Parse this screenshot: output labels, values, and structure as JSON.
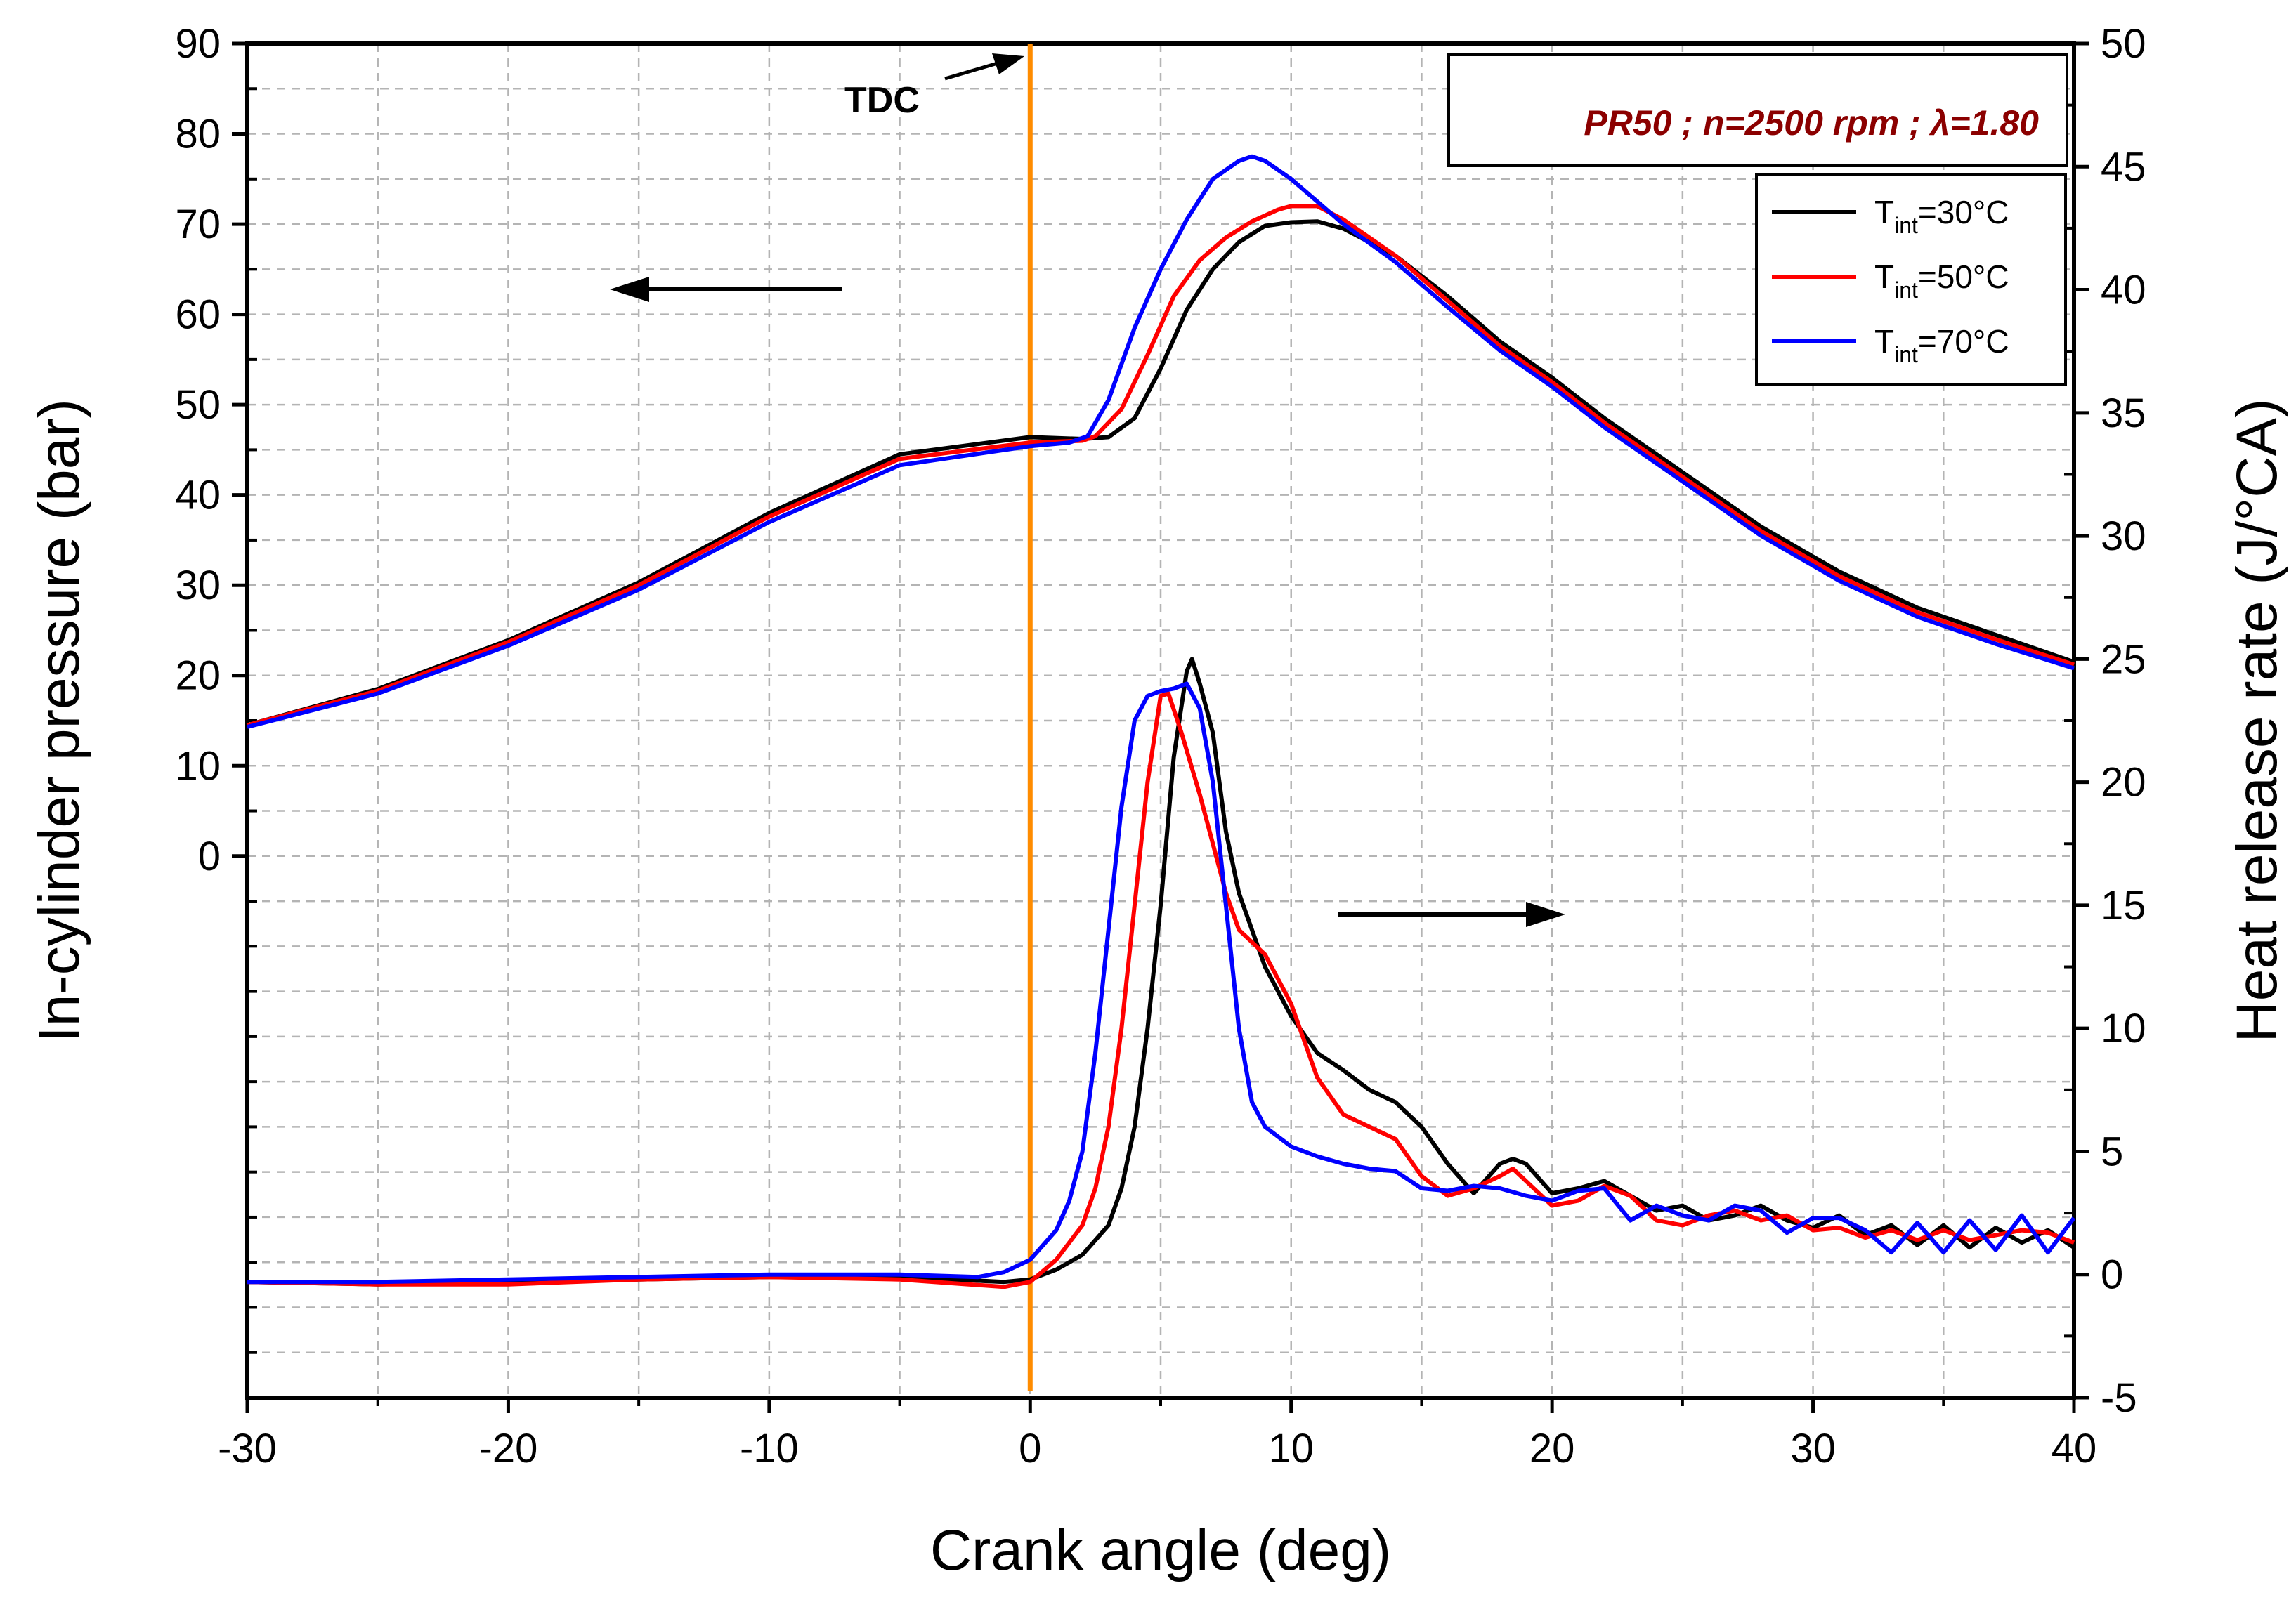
{
  "chart_data": {
    "type": "line",
    "title": "",
    "xlabel": "Crank angle (deg)",
    "ylabel_left": "In-cylinder pressure (bar)",
    "ylabel_right": "Heat release rate (J/°CA)",
    "xlim": [
      -30,
      40
    ],
    "ylim_left": [
      -60,
      90
    ],
    "ylim_right": [
      -5,
      50
    ],
    "x_ticks": [
      "-30",
      "-20",
      "-10",
      "0",
      "10",
      "20",
      "30",
      "40"
    ],
    "y_left_ticks": [
      "0",
      "10",
      "20",
      "30",
      "40",
      "50",
      "60",
      "70",
      "80",
      "90"
    ],
    "y_right_ticks": [
      "-5",
      "0",
      "5",
      "10",
      "15",
      "20",
      "25",
      "30",
      "35",
      "40",
      "45",
      "50"
    ],
    "grid": true,
    "condition_label": "PR50 ; n=2500 rpm ; λ=1.80",
    "tdc_label": "TDC",
    "tdc_x": 0,
    "colors": {
      "tdc_line": "#ff8c00",
      "condition_text": "#8b0000",
      "grid": "#b4b4b4"
    },
    "legend": {
      "position": "top-right",
      "entries": [
        {
          "prefix": "T",
          "sub": "int",
          "suffix": "=30°C"
        },
        {
          "prefix": "T",
          "sub": "int",
          "suffix": "=50°C"
        },
        {
          "prefix": "T",
          "sub": "int",
          "suffix": "=70°C"
        }
      ]
    },
    "series": [
      {
        "name": "Tint=30°C",
        "color": "#000000",
        "pressure": {
          "x": [
            -30,
            -25,
            -20,
            -15,
            -10,
            -5,
            0,
            2,
            3,
            4,
            5,
            6,
            7,
            8,
            9,
            10,
            11,
            12,
            14,
            16,
            18,
            20,
            22,
            25,
            28,
            31,
            34,
            37,
            40
          ],
          "y": [
            14.5,
            18.5,
            23.9,
            30.3,
            38.0,
            44.5,
            46.4,
            46.2,
            46.4,
            48.5,
            54.0,
            60.5,
            65.0,
            68.0,
            69.8,
            70.2,
            70.3,
            69.5,
            66.5,
            62.0,
            57.0,
            53.0,
            48.5,
            42.5,
            36.5,
            31.5,
            27.5,
            24.5,
            21.5
          ]
        },
        "hrr": {
          "x": [
            -30,
            -25,
            -20,
            -15,
            -10,
            -5,
            -1,
            0,
            1,
            2,
            3,
            3.5,
            4,
            4.5,
            5,
            5.5,
            6,
            6.2,
            6.5,
            7,
            7.5,
            8,
            9,
            10,
            11,
            12,
            13,
            14,
            15,
            16,
            17,
            18,
            18.5,
            19,
            20,
            21,
            22,
            23,
            24,
            25,
            26,
            27,
            28,
            29,
            30,
            31,
            32,
            33,
            34,
            35,
            36,
            37,
            38,
            39,
            40
          ],
          "y": [
            -0.3,
            -0.4,
            -0.3,
            -0.2,
            -0.1,
            -0.1,
            -0.3,
            -0.2,
            0.2,
            0.8,
            2.0,
            3.5,
            6.0,
            10.0,
            15.0,
            21.0,
            24.5,
            25.0,
            24.0,
            22.0,
            18.0,
            15.5,
            12.5,
            10.5,
            9.0,
            8.3,
            7.5,
            7.0,
            6.0,
            4.5,
            3.3,
            4.5,
            4.7,
            4.5,
            3.3,
            3.5,
            3.8,
            3.2,
            2.6,
            2.8,
            2.2,
            2.4,
            2.8,
            2.2,
            1.9,
            2.4,
            1.6,
            2.0,
            1.2,
            2.0,
            1.1,
            1.9,
            1.3,
            1.8,
            1.1
          ]
        }
      },
      {
        "name": "Tint=50°C",
        "color": "#ff0000",
        "pressure": {
          "x": [
            -30,
            -25,
            -20,
            -15,
            -10,
            -5,
            0,
            2,
            2.5,
            3.5,
            4.5,
            5.5,
            6.5,
            7.5,
            8.5,
            9.5,
            10,
            11,
            12,
            14,
            16,
            18,
            20,
            22,
            25,
            28,
            31,
            34,
            37,
            40
          ],
          "y": [
            14.5,
            18.3,
            23.7,
            30.0,
            37.6,
            44.0,
            45.8,
            46.0,
            46.5,
            49.5,
            55.5,
            62.0,
            66.0,
            68.5,
            70.3,
            71.6,
            72.0,
            72.0,
            70.5,
            66.5,
            61.5,
            56.5,
            52.5,
            48.0,
            42.0,
            36.0,
            31.0,
            27.0,
            24.0,
            21.2
          ]
        },
        "hrr": {
          "x": [
            -30,
            -25,
            -20,
            -15,
            -10,
            -5,
            -1,
            0,
            1,
            2,
            2.5,
            3,
            3.5,
            4,
            4.5,
            5,
            5.3,
            5.8,
            6.5,
            7,
            7.5,
            8,
            9,
            10,
            11,
            12,
            13,
            14,
            15,
            16,
            17,
            18,
            18.5,
            19,
            20,
            21,
            22,
            23,
            24,
            25,
            26,
            27,
            28,
            29,
            30,
            31,
            32,
            33,
            34,
            35,
            36,
            37,
            38,
            39,
            40
          ],
          "y": [
            -0.3,
            -0.4,
            -0.4,
            -0.2,
            -0.1,
            -0.2,
            -0.5,
            -0.3,
            0.6,
            2.0,
            3.5,
            6.0,
            10.0,
            15.0,
            20.0,
            23.5,
            23.6,
            22.0,
            19.5,
            17.5,
            15.5,
            14.0,
            13.0,
            11.0,
            8.0,
            6.5,
            6.0,
            5.5,
            4.0,
            3.2,
            3.5,
            4.0,
            4.3,
            3.8,
            2.8,
            3.0,
            3.6,
            3.2,
            2.2,
            2.0,
            2.4,
            2.6,
            2.2,
            2.4,
            1.8,
            1.9,
            1.5,
            1.8,
            1.4,
            1.8,
            1.4,
            1.6,
            1.8,
            1.7,
            1.3
          ]
        }
      },
      {
        "name": "Tint=70°C",
        "color": "#0000ff",
        "pressure": {
          "x": [
            -30,
            -25,
            -20,
            -15,
            -10,
            -5,
            0,
            1.5,
            2.2,
            3,
            4,
            5,
            6,
            7,
            8,
            8.5,
            9,
            10,
            11,
            12,
            14,
            16,
            18,
            20,
            22,
            25,
            28,
            31,
            34,
            37,
            40
          ],
          "y": [
            14.3,
            18.0,
            23.3,
            29.5,
            37.0,
            43.3,
            45.4,
            45.8,
            46.5,
            50.5,
            58.5,
            65.0,
            70.5,
            75.0,
            77.0,
            77.5,
            77.0,
            75.0,
            72.5,
            70.0,
            65.8,
            60.8,
            56.0,
            52.0,
            47.5,
            41.5,
            35.5,
            30.5,
            26.5,
            23.5,
            20.8
          ]
        },
        "hrr": {
          "x": [
            -30,
            -25,
            -20,
            -15,
            -10,
            -5,
            -2,
            -1,
            0,
            1,
            1.5,
            2,
            2.5,
            3,
            3.5,
            4,
            4.5,
            5,
            5.5,
            6,
            6.5,
            7,
            7.5,
            8,
            8.5,
            9,
            10,
            11,
            12,
            13,
            14,
            15,
            16,
            17,
            18,
            19,
            20,
            21,
            22,
            23,
            24,
            25,
            26,
            27,
            28,
            29,
            30,
            31,
            32,
            33,
            34,
            35,
            36,
            37,
            38,
            39,
            40
          ],
          "y": [
            -0.3,
            -0.3,
            -0.2,
            -0.1,
            0.0,
            0.0,
            -0.1,
            0.1,
            0.6,
            1.8,
            3.0,
            5.0,
            9.0,
            14.0,
            19.0,
            22.5,
            23.5,
            23.7,
            23.8,
            24.0,
            23.0,
            20.0,
            15.0,
            10.0,
            7.0,
            6.0,
            5.2,
            4.8,
            4.5,
            4.3,
            4.2,
            3.5,
            3.4,
            3.6,
            3.5,
            3.2,
            3.0,
            3.4,
            3.5,
            2.2,
            2.8,
            2.4,
            2.2,
            2.8,
            2.6,
            1.7,
            2.3,
            2.3,
            1.8,
            0.9,
            2.1,
            0.9,
            2.2,
            1.0,
            2.4,
            0.9,
            2.3
          ]
        }
      }
    ]
  }
}
